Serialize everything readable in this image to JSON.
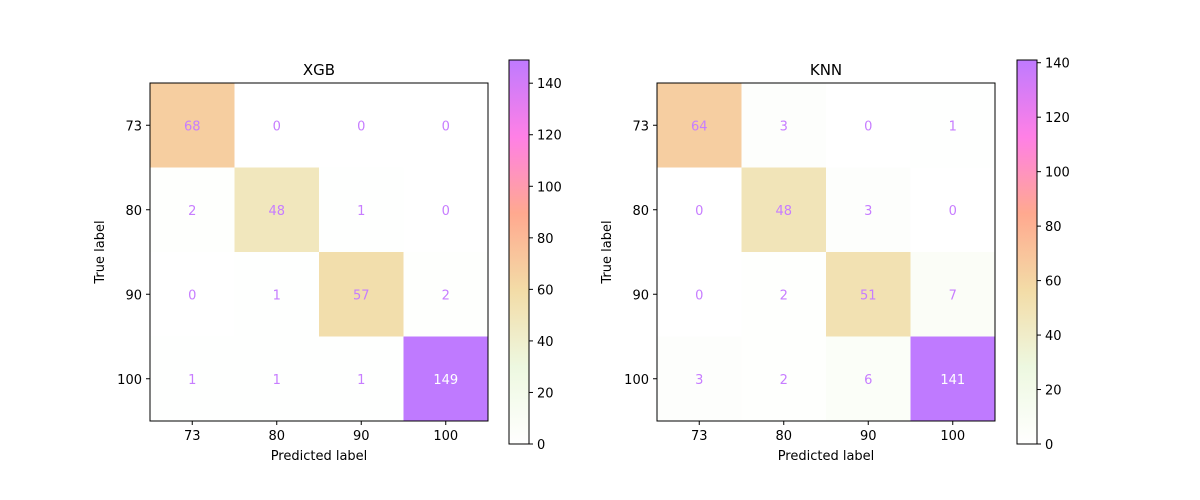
{
  "chart_data": [
    {
      "type": "heatmap",
      "title": "XGB",
      "xlabel": "Predicted label",
      "ylabel": "True label",
      "x_categories": [
        "73",
        "80",
        "90",
        "100"
      ],
      "y_categories": [
        "73",
        "80",
        "90",
        "100"
      ],
      "matrix": [
        [
          68,
          0,
          0,
          0
        ],
        [
          2,
          48,
          1,
          0
        ],
        [
          0,
          1,
          57,
          2
        ],
        [
          1,
          1,
          1,
          149
        ]
      ],
      "colorbar": {
        "min": 0,
        "max": 149,
        "ticks": [
          0,
          20,
          40,
          60,
          80,
          100,
          120,
          140
        ]
      },
      "cell_text_color": "#c77dff",
      "grid": false
    },
    {
      "type": "heatmap",
      "title": "KNN",
      "xlabel": "Predicted label",
      "ylabel": "True label",
      "x_categories": [
        "73",
        "80",
        "90",
        "100"
      ],
      "y_categories": [
        "73",
        "80",
        "90",
        "100"
      ],
      "matrix": [
        [
          64,
          3,
          0,
          1
        ],
        [
          0,
          48,
          3,
          0
        ],
        [
          0,
          2,
          51,
          7
        ],
        [
          3,
          2,
          6,
          141
        ]
      ],
      "colorbar": {
        "min": 0,
        "max": 141,
        "ticks": [
          0,
          20,
          40,
          60,
          80,
          100,
          120,
          140
        ]
      },
      "cell_text_color": "#c77dff",
      "grid": false
    }
  ],
  "colormap": {
    "stops": [
      "#ffffff",
      "#edf8e0",
      "#f3dca7",
      "#ffa98f",
      "#ff80e6",
      "#bf7aff"
    ]
  }
}
